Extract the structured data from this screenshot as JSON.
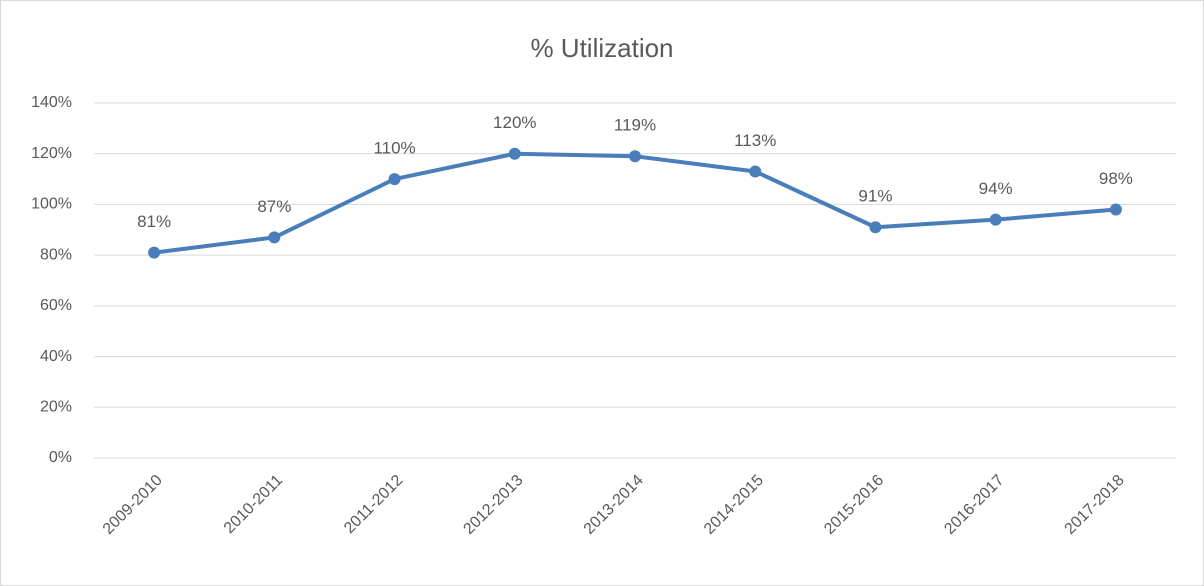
{
  "chart_data": {
    "type": "line",
    "title": "% Utilization",
    "categories": [
      "2009-2010",
      "2010-2011",
      "2011-2012",
      "2012-2013",
      "2013-2014",
      "2014-2015",
      "2015-2016",
      "2016-2017",
      "2017-2018"
    ],
    "values": [
      81,
      87,
      110,
      120,
      119,
      113,
      91,
      94,
      98
    ],
    "value_labels": [
      "81%",
      "87%",
      "110%",
      "120%",
      "119%",
      "113%",
      "91%",
      "94%",
      "98%"
    ],
    "color": "#4a7ebb",
    "ylim": [
      0,
      140
    ],
    "yticks": [
      {
        "value": 0,
        "label": "0%"
      },
      {
        "value": 20,
        "label": "20%"
      },
      {
        "value": 40,
        "label": "40%"
      },
      {
        "value": 60,
        "label": "60%"
      },
      {
        "value": 80,
        "label": "80%"
      },
      {
        "value": 100,
        "label": "100%"
      },
      {
        "value": 120,
        "label": "120%"
      },
      {
        "value": 140,
        "label": "140%"
      }
    ],
    "grid": true
  }
}
